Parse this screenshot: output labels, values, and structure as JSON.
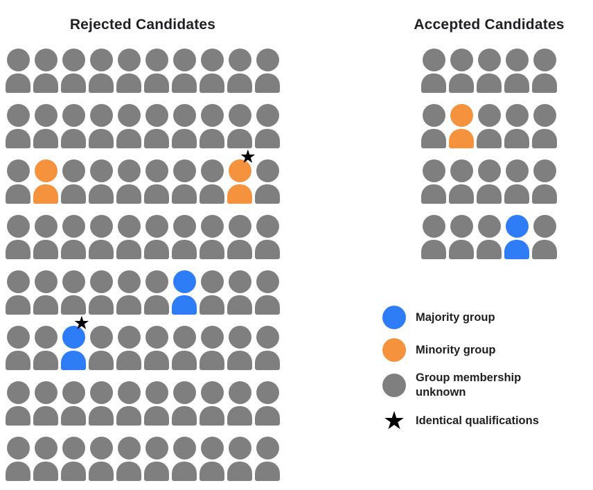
{
  "titles": {
    "rejected": "Rejected Candidates",
    "accepted": "Accepted Candidates"
  },
  "colors": {
    "blue": "#2E7DF7",
    "orange": "#F5923E",
    "gray": "#7F7F7F",
    "star": "#000000"
  },
  "icons": {
    "star": "★"
  },
  "grids": {
    "rejected": {
      "rows": 8,
      "cols": 10,
      "default_color": "gray",
      "special_cells": [
        {
          "row": 2,
          "col": 1,
          "color": "orange",
          "star": false
        },
        {
          "row": 2,
          "col": 8,
          "color": "orange",
          "star": true
        },
        {
          "row": 4,
          "col": 6,
          "color": "blue",
          "star": false
        },
        {
          "row": 5,
          "col": 2,
          "color": "blue",
          "star": true
        }
      ]
    },
    "accepted": {
      "rows": 4,
      "cols": 5,
      "default_color": "gray",
      "special_cells": [
        {
          "row": 1,
          "col": 1,
          "color": "orange",
          "star": false
        },
        {
          "row": 3,
          "col": 3,
          "color": "blue",
          "star": false
        }
      ]
    }
  },
  "legend": {
    "items": [
      {
        "swatch": "circle",
        "color": "blue",
        "label": "Majority group"
      },
      {
        "swatch": "circle",
        "color": "orange",
        "label": "Minority group"
      },
      {
        "swatch": "circle",
        "color": "gray",
        "label": "Group membership unknown"
      },
      {
        "swatch": "star",
        "color": "star",
        "label": "Identical qualifications"
      }
    ]
  }
}
